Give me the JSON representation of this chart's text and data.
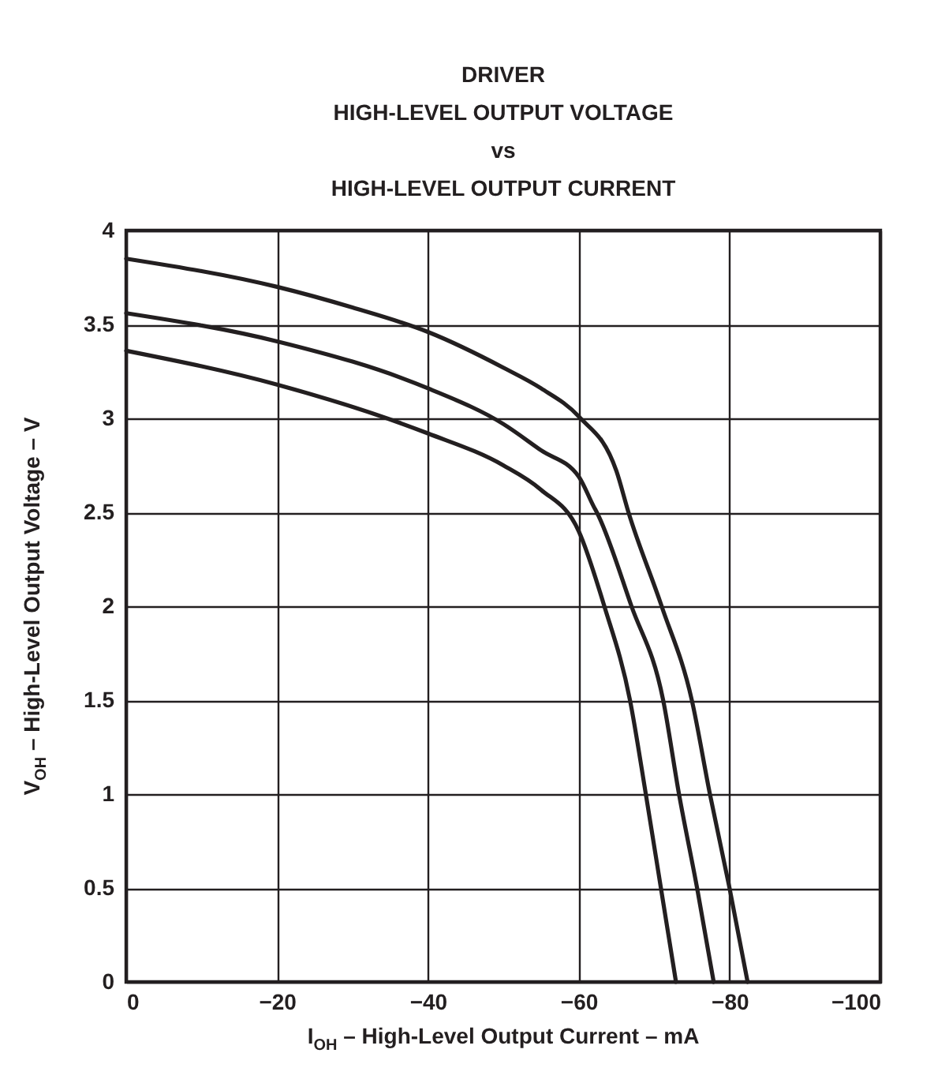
{
  "chart_data": {
    "type": "line",
    "title": "DRIVER\nHIGH-LEVEL OUTPUT VOLTAGE\nvs\nHIGH-LEVEL OUTPUT CURRENT",
    "xlabel": "I$_{OH}$ – High-Level Output Current – mA",
    "ylabel": "V$_{OH}$ – High-Level Output Voltage – V",
    "xlim": [
      0,
      -100
    ],
    "xticks": [
      0,
      {
        "value": -20,
        "label": "−20"
      },
      {
        "value": -40,
        "label": "−40"
      },
      {
        "value": -60,
        "label": "−60"
      },
      {
        "value": -80,
        "label": "−80"
      },
      {
        "value": -100,
        "label": "−100"
      }
    ],
    "ylim": [
      0,
      4
    ],
    "yticks": [
      0,
      0.5,
      1,
      1.5,
      2,
      2.5,
      3,
      3.5,
      4
    ],
    "grid": true,
    "series": [
      {
        "color": "#231f20",
        "x": [
          0,
          -20,
          -30,
          -40,
          -50,
          -55,
          -60,
          -65,
          -66.6,
          -71,
          -75,
          -77.4,
          -80,
          -82.4
        ],
        "values": [
          3.85,
          3.7,
          3.59,
          3.46,
          3.27,
          3.16,
          3.01,
          2.72,
          2.5,
          2.0,
          1.5,
          1.0,
          0.5,
          0
        ]
      },
      {
        "color": "#231f20",
        "x": [
          0,
          -20,
          -40,
          -50,
          -55,
          -60,
          -62,
          -62.4,
          -67,
          -71.2,
          -73.3,
          -75.7,
          -77.9
        ],
        "values": [
          3.56,
          3.41,
          3.16,
          2.97,
          2.83,
          2.69,
          2.53,
          2.5,
          2.0,
          1.5,
          1.0,
          0.5,
          0
        ]
      },
      {
        "color": "#231f20",
        "x": [
          0,
          -20,
          -40,
          -50,
          -55,
          -60,
          -63.4,
          -66.8,
          -68.9,
          -70.9,
          -72.9
        ],
        "values": [
          3.36,
          3.18,
          2.92,
          2.75,
          2.62,
          2.4,
          2.0,
          1.5,
          1.0,
          0.5,
          0
        ]
      }
    ]
  }
}
